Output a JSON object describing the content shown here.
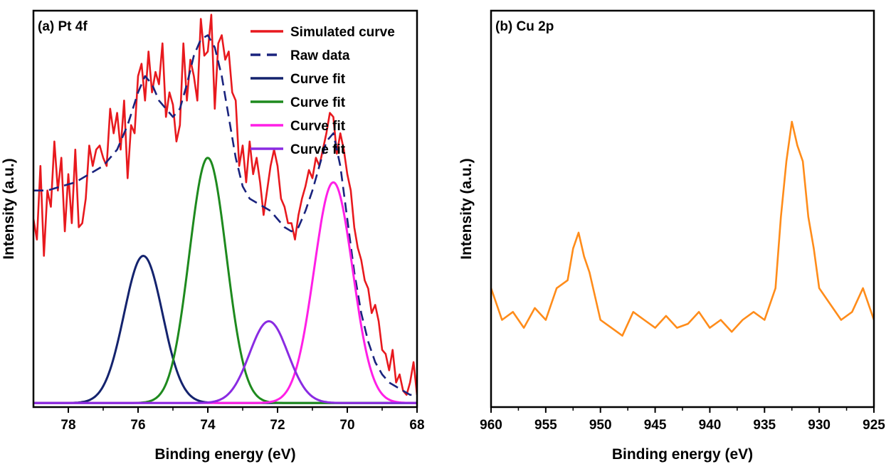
{
  "chart_data": [
    {
      "type": "line",
      "title": "(a) Pt 4f",
      "xlabel": "Binding energy (eV)",
      "ylabel": "Intensity (a.u.)",
      "xlim": [
        79,
        68
      ],
      "x_reversed": true,
      "ylim": [
        0,
        1
      ],
      "y_ticks_shown": false,
      "xticks": [
        78,
        76,
        74,
        72,
        70,
        68
      ],
      "grid": false,
      "legend": "top-right",
      "legend_entries": [
        {
          "label": "Simulated curve",
          "color": "#e8191e",
          "style": "solid"
        },
        {
          "label": "Raw data",
          "color": "#1a237e",
          "style": "dashed"
        },
        {
          "label": "Curve fit",
          "color": "#14236e",
          "style": "solid"
        },
        {
          "label": "Curve fit",
          "color": "#1e8a1e",
          "style": "solid"
        },
        {
          "label": "Curve fit",
          "color": "#ff1fe6",
          "style": "solid"
        },
        {
          "label": "Curve fit",
          "color": "#8a2be2",
          "style": "solid"
        }
      ],
      "series": [
        {
          "name": "Simulated curve",
          "color": "#e8191e",
          "style": "solid",
          "x": [
            79.0,
            78.9,
            78.8,
            78.7,
            78.6,
            78.5,
            78.4,
            78.3,
            78.2,
            78.1,
            78.0,
            77.9,
            77.8,
            77.7,
            77.6,
            77.5,
            77.4,
            77.3,
            77.2,
            77.1,
            77.0,
            76.9,
            76.8,
            76.7,
            76.6,
            76.5,
            76.4,
            76.3,
            76.2,
            76.1,
            76.0,
            75.9,
            75.8,
            75.7,
            75.6,
            75.5,
            75.4,
            75.3,
            75.2,
            75.1,
            75.0,
            74.9,
            74.8,
            74.7,
            74.6,
            74.5,
            74.4,
            74.3,
            74.2,
            74.1,
            74.0,
            73.9,
            73.8,
            73.7,
            73.6,
            73.5,
            73.4,
            73.3,
            73.2,
            73.1,
            73.0,
            72.9,
            72.8,
            72.7,
            72.6,
            72.5,
            72.4,
            72.3,
            72.2,
            72.1,
            72.0,
            71.9,
            71.8,
            71.7,
            71.6,
            71.5,
            71.4,
            71.3,
            71.2,
            71.1,
            71.0,
            70.9,
            70.8,
            70.7,
            70.6,
            70.5,
            70.4,
            70.3,
            70.2,
            70.1,
            70.0,
            69.9,
            69.8,
            69.7,
            69.6,
            69.5,
            69.4,
            69.3,
            69.2,
            69.1,
            69.0,
            68.9,
            68.8,
            68.7,
            68.6,
            68.5,
            68.4,
            68.3,
            68.2,
            68.1,
            68.0
          ],
          "y": [
            0.45,
            0.4,
            0.58,
            0.36,
            0.52,
            0.48,
            0.64,
            0.52,
            0.6,
            0.42,
            0.56,
            0.44,
            0.62,
            0.43,
            0.44,
            0.5,
            0.63,
            0.58,
            0.62,
            0.63,
            0.6,
            0.58,
            0.72,
            0.66,
            0.71,
            0.62,
            0.74,
            0.55,
            0.68,
            0.66,
            0.8,
            0.83,
            0.74,
            0.86,
            0.76,
            0.81,
            0.78,
            0.88,
            0.7,
            0.76,
            0.73,
            0.64,
            0.68,
            0.88,
            0.74,
            0.84,
            0.8,
            0.74,
            0.94,
            0.85,
            0.86,
            0.95,
            0.72,
            0.88,
            0.9,
            0.84,
            0.86,
            0.76,
            0.74,
            0.58,
            0.63,
            0.54,
            0.64,
            0.56,
            0.6,
            0.54,
            0.46,
            0.52,
            0.58,
            0.62,
            0.58,
            0.5,
            0.48,
            0.44,
            0.44,
            0.4,
            0.46,
            0.5,
            0.53,
            0.57,
            0.55,
            0.6,
            0.58,
            0.62,
            0.66,
            0.71,
            0.7,
            0.61,
            0.66,
            0.62,
            0.56,
            0.52,
            0.43,
            0.38,
            0.35,
            0.3,
            0.28,
            0.22,
            0.24,
            0.2,
            0.13,
            0.12,
            0.08,
            0.13,
            0.05,
            0.07,
            0.03,
            0.02,
            0.05,
            0.1,
            0.02
          ]
        },
        {
          "name": "Raw data",
          "color": "#1a237e",
          "style": "dashed",
          "x": [
            79.0,
            78.6,
            78.2,
            77.8,
            77.4,
            77.0,
            76.6,
            76.3,
            76.0,
            75.8,
            75.6,
            75.4,
            75.2,
            75.0,
            74.8,
            74.6,
            74.4,
            74.2,
            74.0,
            73.8,
            73.6,
            73.4,
            73.2,
            73.0,
            72.8,
            72.6,
            72.4,
            72.2,
            72.0,
            71.8,
            71.6,
            71.4,
            71.2,
            71.0,
            70.8,
            70.6,
            70.4,
            70.2,
            70.0,
            69.8,
            69.6,
            69.4,
            69.2,
            69.0,
            68.8,
            68.6,
            68.4,
            68.2,
            68.0
          ],
          "y": [
            0.52,
            0.52,
            0.53,
            0.54,
            0.56,
            0.58,
            0.62,
            0.68,
            0.76,
            0.8,
            0.78,
            0.74,
            0.72,
            0.7,
            0.72,
            0.78,
            0.85,
            0.89,
            0.9,
            0.87,
            0.8,
            0.7,
            0.6,
            0.53,
            0.5,
            0.49,
            0.48,
            0.47,
            0.45,
            0.43,
            0.42,
            0.43,
            0.47,
            0.52,
            0.58,
            0.64,
            0.66,
            0.58,
            0.45,
            0.32,
            0.22,
            0.15,
            0.1,
            0.07,
            0.05,
            0.04,
            0.03,
            0.02,
            0.02
          ]
        },
        {
          "name": "Curve fit",
          "color": "#14236e",
          "style": "solid",
          "peak": {
            "center_eV": 75.85,
            "height": 0.36,
            "fwhm_eV": 1.3
          }
        },
        {
          "name": "Curve fit",
          "color": "#1e8a1e",
          "style": "solid",
          "peak": {
            "center_eV": 74.0,
            "height": 0.6,
            "fwhm_eV": 1.25
          }
        },
        {
          "name": "Curve fit",
          "color": "#ff1fe6",
          "style": "solid",
          "peak": {
            "center_eV": 70.4,
            "height": 0.54,
            "fwhm_eV": 1.3
          }
        },
        {
          "name": "Curve fit",
          "color": "#8a2be2",
          "style": "solid",
          "peak": {
            "center_eV": 72.25,
            "height": 0.2,
            "fwhm_eV": 1.3
          }
        }
      ]
    },
    {
      "type": "line",
      "title": "(b) Cu 2p",
      "xlabel": "Binding energy (eV)",
      "ylabel": "Intensity (a.u.)",
      "xlim": [
        960,
        925
      ],
      "x_reversed": true,
      "ylim": [
        0,
        1
      ],
      "y_ticks_shown": false,
      "xticks": [
        960,
        955,
        950,
        945,
        940,
        935,
        930,
        925
      ],
      "grid": false,
      "series": [
        {
          "name": "",
          "color": "#ff8c1a",
          "style": "solid",
          "x": [
            960,
            959,
            958,
            957,
            956,
            955,
            954,
            953,
            952.5,
            952,
            951.5,
            951,
            950.5,
            950,
            949,
            948,
            947,
            946,
            945,
            944,
            943,
            942,
            941,
            940,
            939,
            938,
            937,
            936,
            935,
            934,
            933.5,
            933,
            932.5,
            932,
            931.5,
            931,
            930.5,
            930,
            929,
            928,
            927,
            926,
            925
          ],
          "y": [
            0.3,
            0.22,
            0.24,
            0.2,
            0.25,
            0.22,
            0.3,
            0.32,
            0.4,
            0.44,
            0.38,
            0.34,
            0.28,
            0.22,
            0.2,
            0.18,
            0.24,
            0.22,
            0.2,
            0.23,
            0.2,
            0.21,
            0.24,
            0.2,
            0.22,
            0.19,
            0.22,
            0.24,
            0.22,
            0.3,
            0.48,
            0.62,
            0.72,
            0.66,
            0.62,
            0.48,
            0.4,
            0.3,
            0.26,
            0.22,
            0.24,
            0.3,
            0.22
          ]
        }
      ]
    }
  ]
}
